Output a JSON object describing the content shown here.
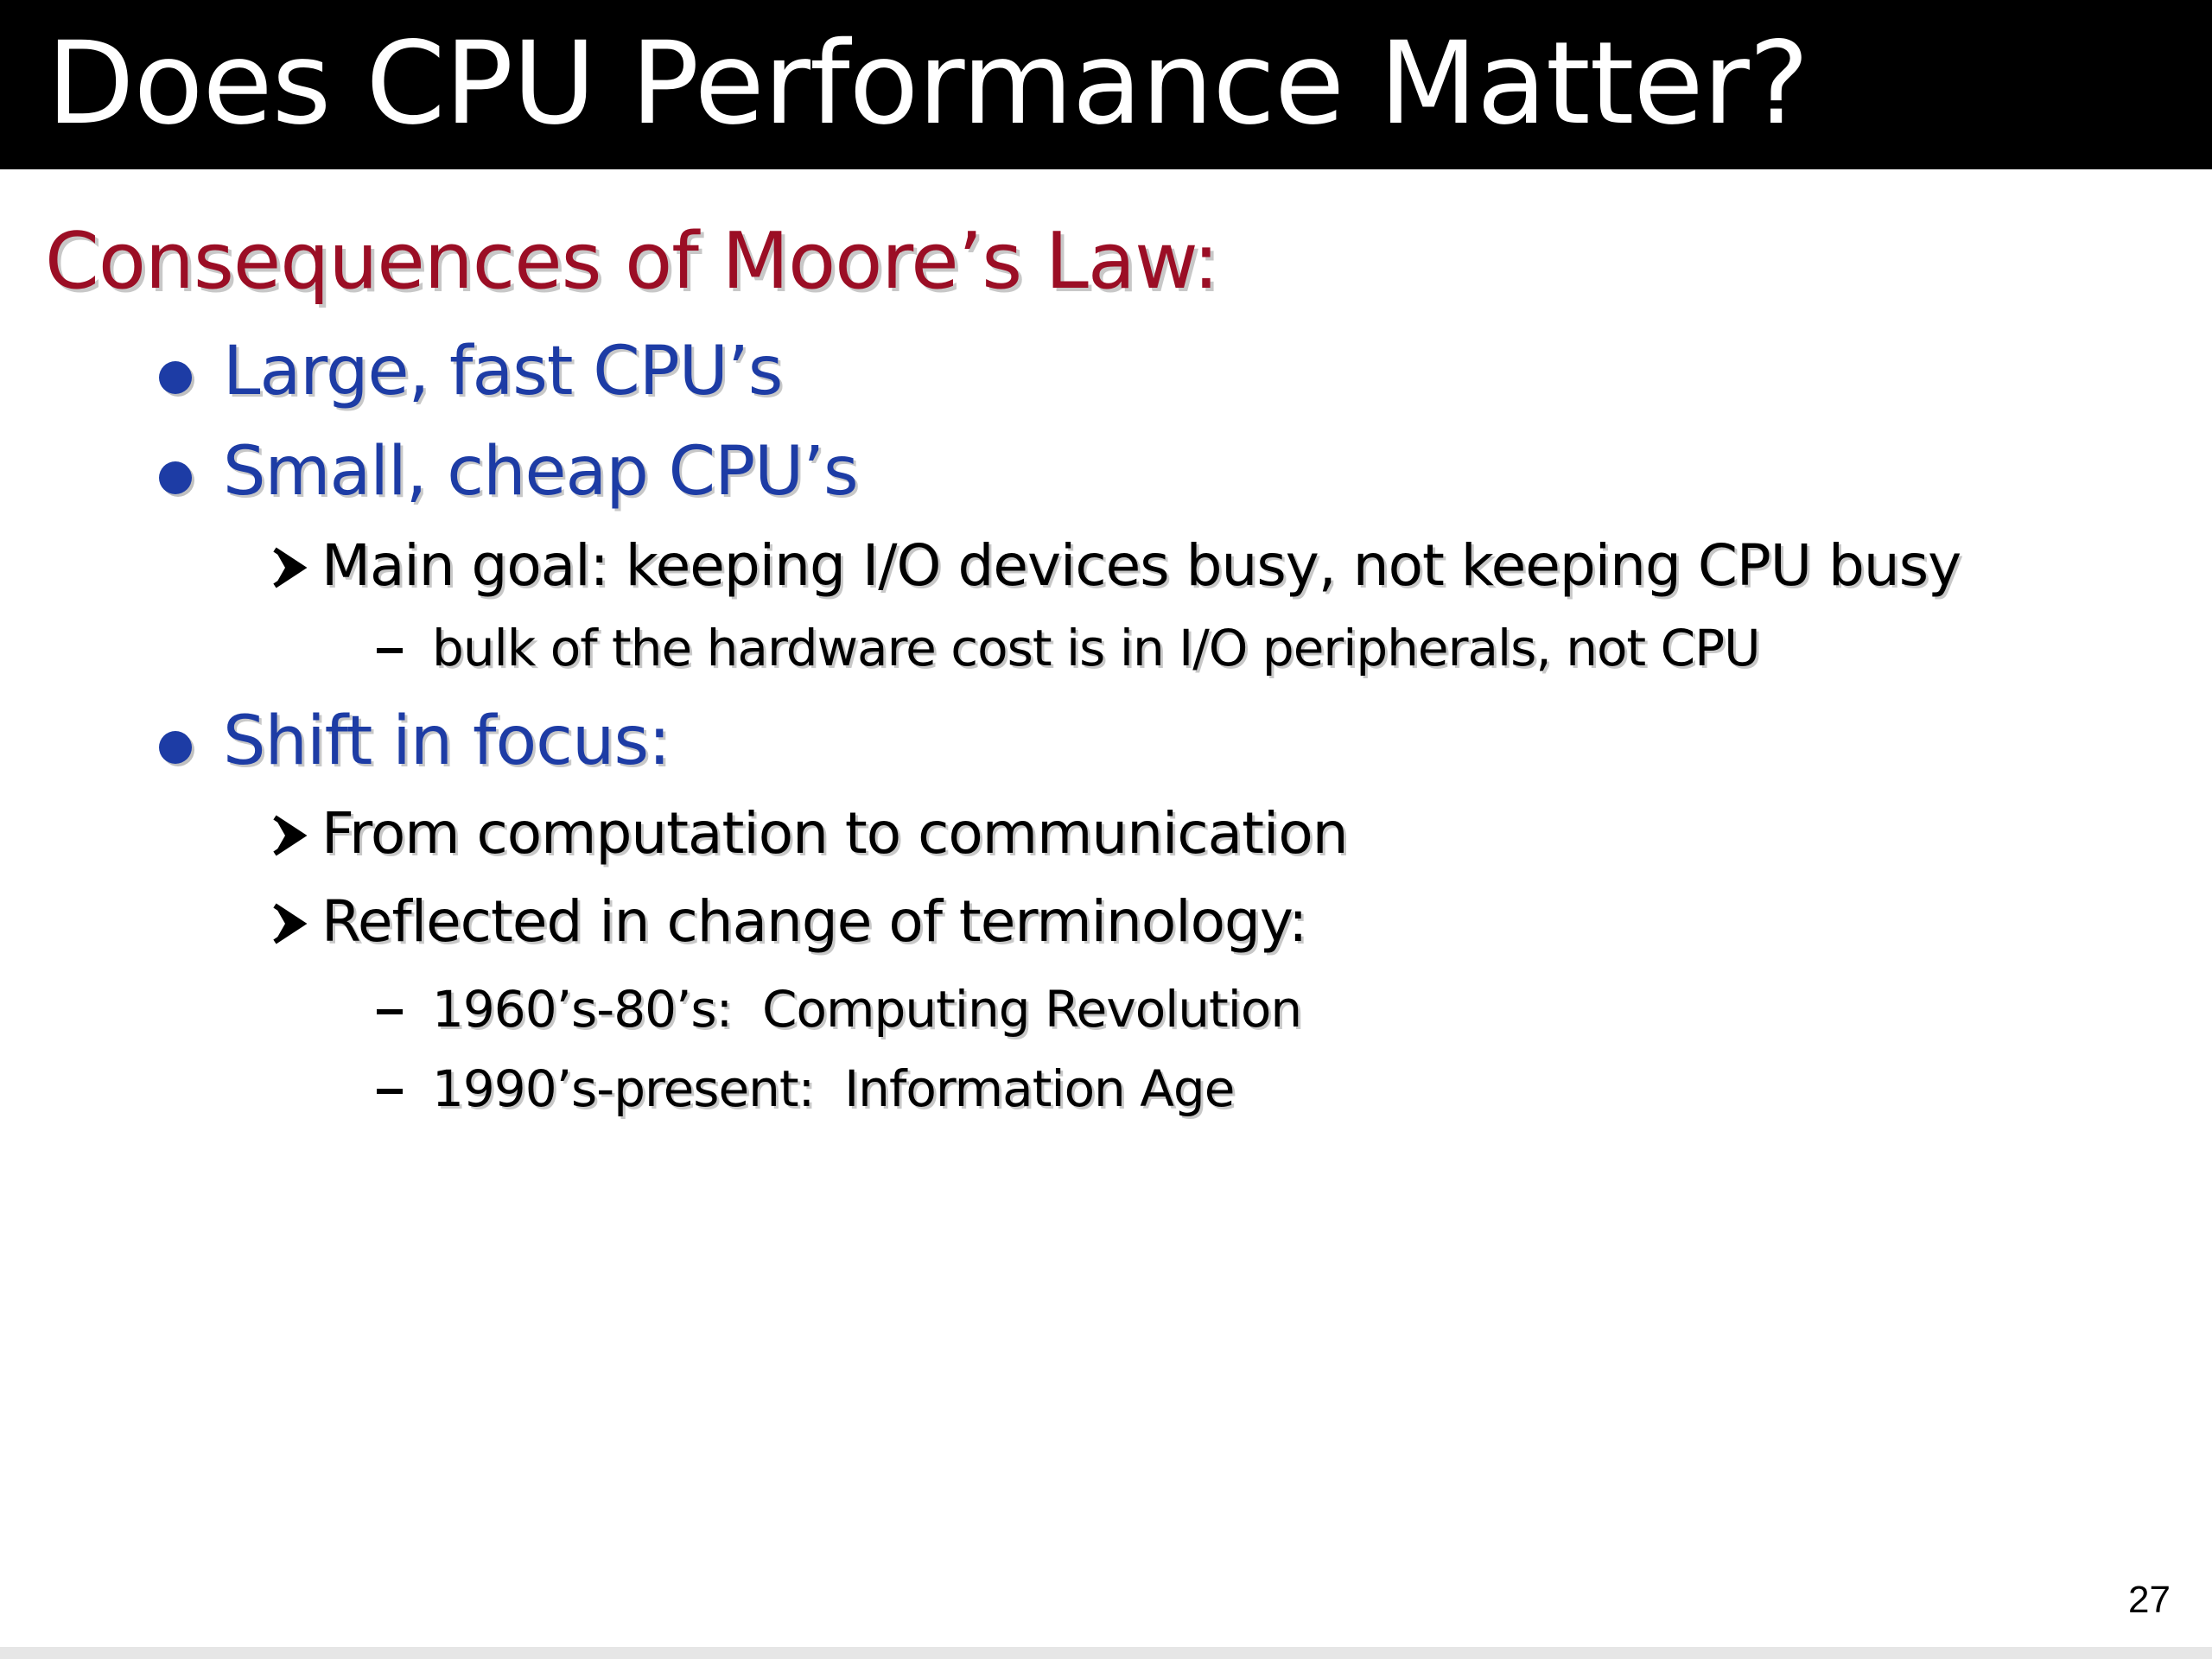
{
  "slide": {
    "title": "Does CPU Performance Matter?",
    "heading": "Consequences of Moore’s Law:",
    "bullets": [
      {
        "text": "Large, fast CPU’s"
      },
      {
        "text": "Small, cheap CPU’s",
        "sub": [
          {
            "text": "Main goal:  keeping I/O devices busy, not keeping CPU busy",
            "sub": [
              {
                "text": "bulk of the hardware cost is in I/O peripherals, not CPU"
              }
            ]
          }
        ]
      },
      {
        "text": "Shift in focus:",
        "sub": [
          {
            "text": "From computation to communication"
          },
          {
            "text": "Reflected in change of terminology:",
            "sub": [
              {
                "text": "1960’s-80’s:  Computing Revolution"
              },
              {
                "text": "1990’s-present:  Information Age"
              }
            ]
          }
        ]
      }
    ],
    "page_number": "27"
  },
  "colors": {
    "title_bar": "#000000",
    "title_text": "#ffffff",
    "heading": "#9b0e25",
    "level1": "#1d3ca5",
    "body_text": "#000000"
  },
  "icons": {
    "level1_marker": "bullet-dot",
    "level2_marker": "arrowhead-icon",
    "level3_marker": "dash-icon"
  }
}
